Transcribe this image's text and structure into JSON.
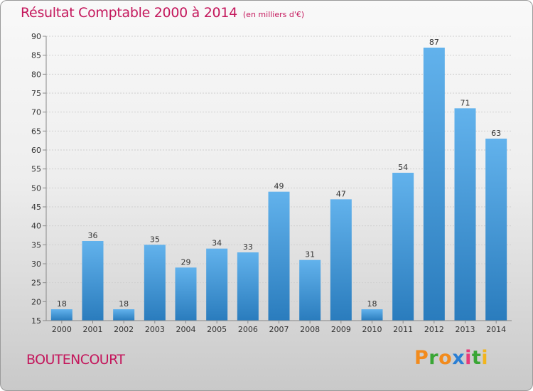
{
  "title": "Résultat Comptable 2000 à 2014",
  "subtitle": "(en milliers d'€)",
  "commune": "BOUTENCOURT",
  "logo": {
    "letters": [
      "P",
      "r",
      "o",
      "x",
      "i",
      "t",
      "i"
    ],
    "colors": [
      "#f28b1d",
      "#3aa635",
      "#f28b1d",
      "#2a7fd4",
      "#e83a7a",
      "#3aa635",
      "#f2b51d"
    ]
  },
  "colors": {
    "title": "#c4175c",
    "bar_top": "#62b2ec",
    "bar_bottom": "#2a7cbd"
  },
  "chart_data": {
    "type": "bar",
    "categories": [
      "2000",
      "2001",
      "2002",
      "2003",
      "2004",
      "2005",
      "2006",
      "2007",
      "2008",
      "2009",
      "2010",
      "2011",
      "2012",
      "2013",
      "2014"
    ],
    "values": [
      18,
      36,
      18,
      35,
      29,
      34,
      33,
      49,
      31,
      47,
      18,
      54,
      87,
      71,
      63
    ],
    "ylim": [
      15,
      90
    ],
    "yticks": [
      15,
      20,
      25,
      30,
      35,
      40,
      45,
      50,
      55,
      60,
      65,
      70,
      75,
      80,
      85,
      90
    ],
    "grid": true,
    "legend": "none"
  }
}
